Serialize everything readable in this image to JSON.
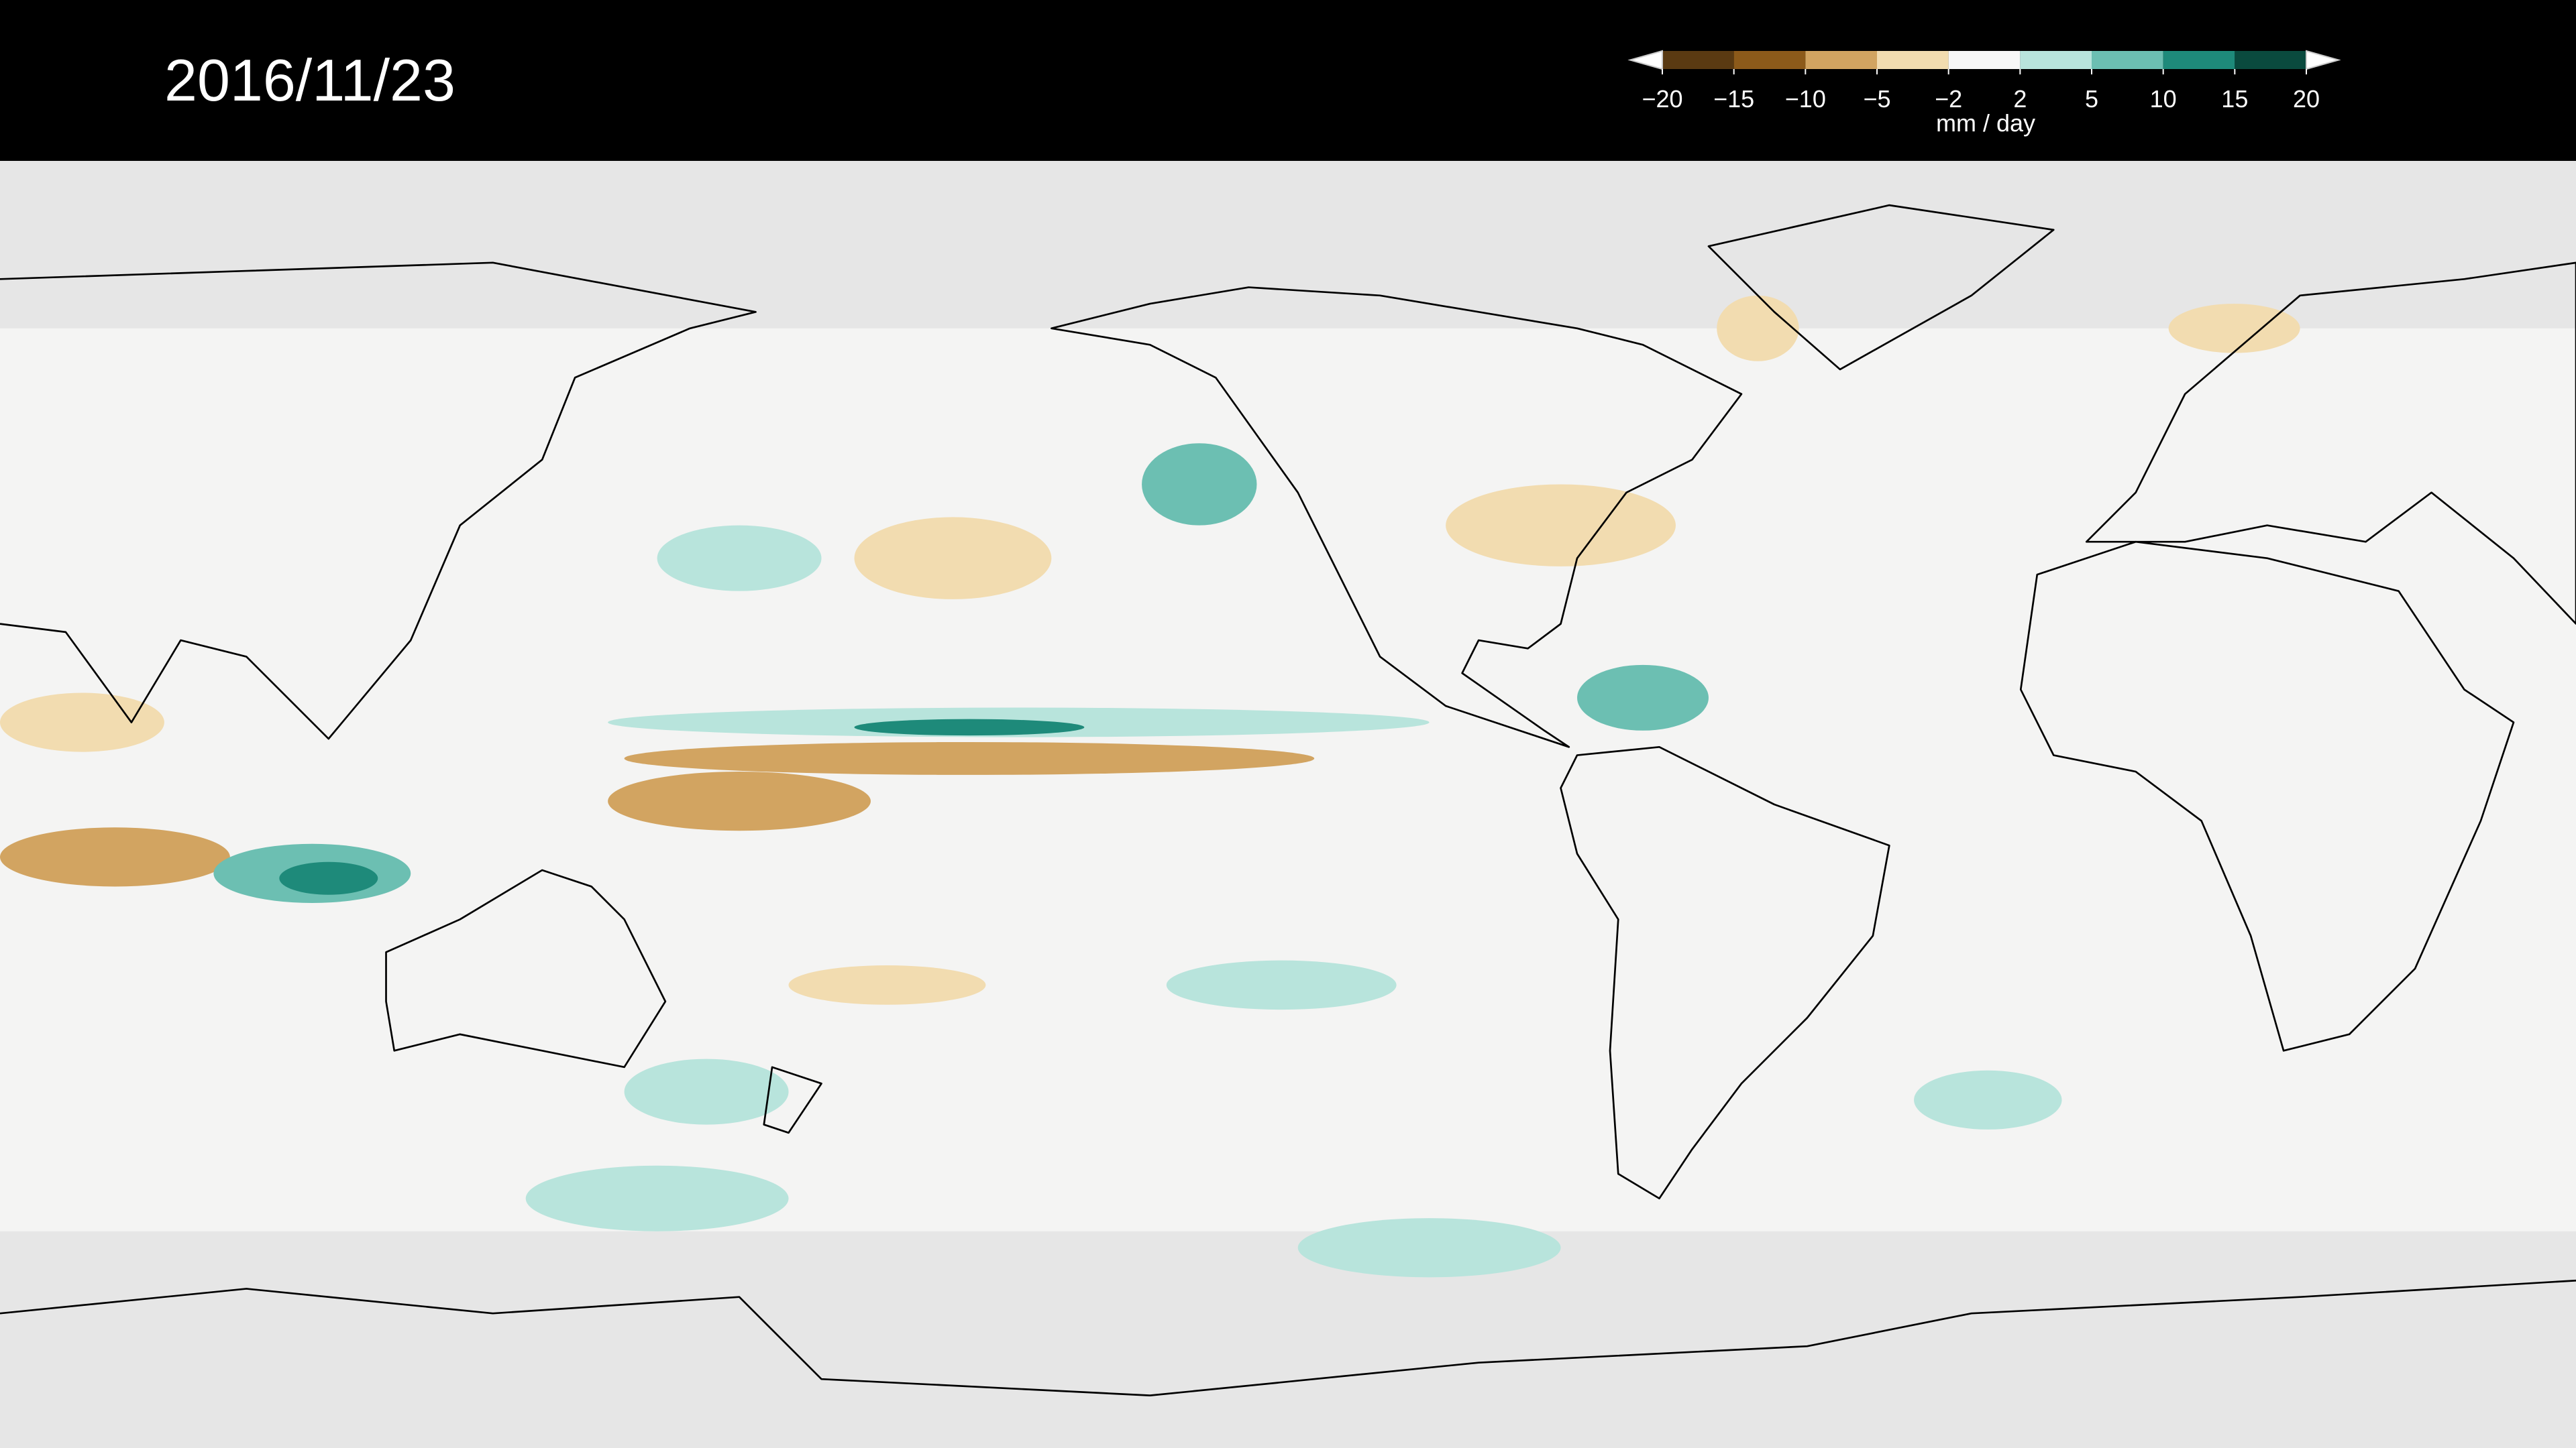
{
  "title": "2016/11/23",
  "colorbar": {
    "ticks": [
      {
        "value": -20,
        "label": "−20"
      },
      {
        "value": -15,
        "label": "−15"
      },
      {
        "value": -10,
        "label": "−10"
      },
      {
        "value": -5,
        "label": "−5"
      },
      {
        "value": -2,
        "label": "−2"
      },
      2,
      5,
      10,
      15,
      20
    ],
    "colors": [
      "#5a3a12",
      "#8c5a1a",
      "#d2a461",
      "#f2dcb0",
      "#f7f7f7",
      "#b8e4dc",
      "#6cbfb2",
      "#1e8a7a",
      "#0a4a3e"
    ],
    "unit": "mm / day"
  }
}
